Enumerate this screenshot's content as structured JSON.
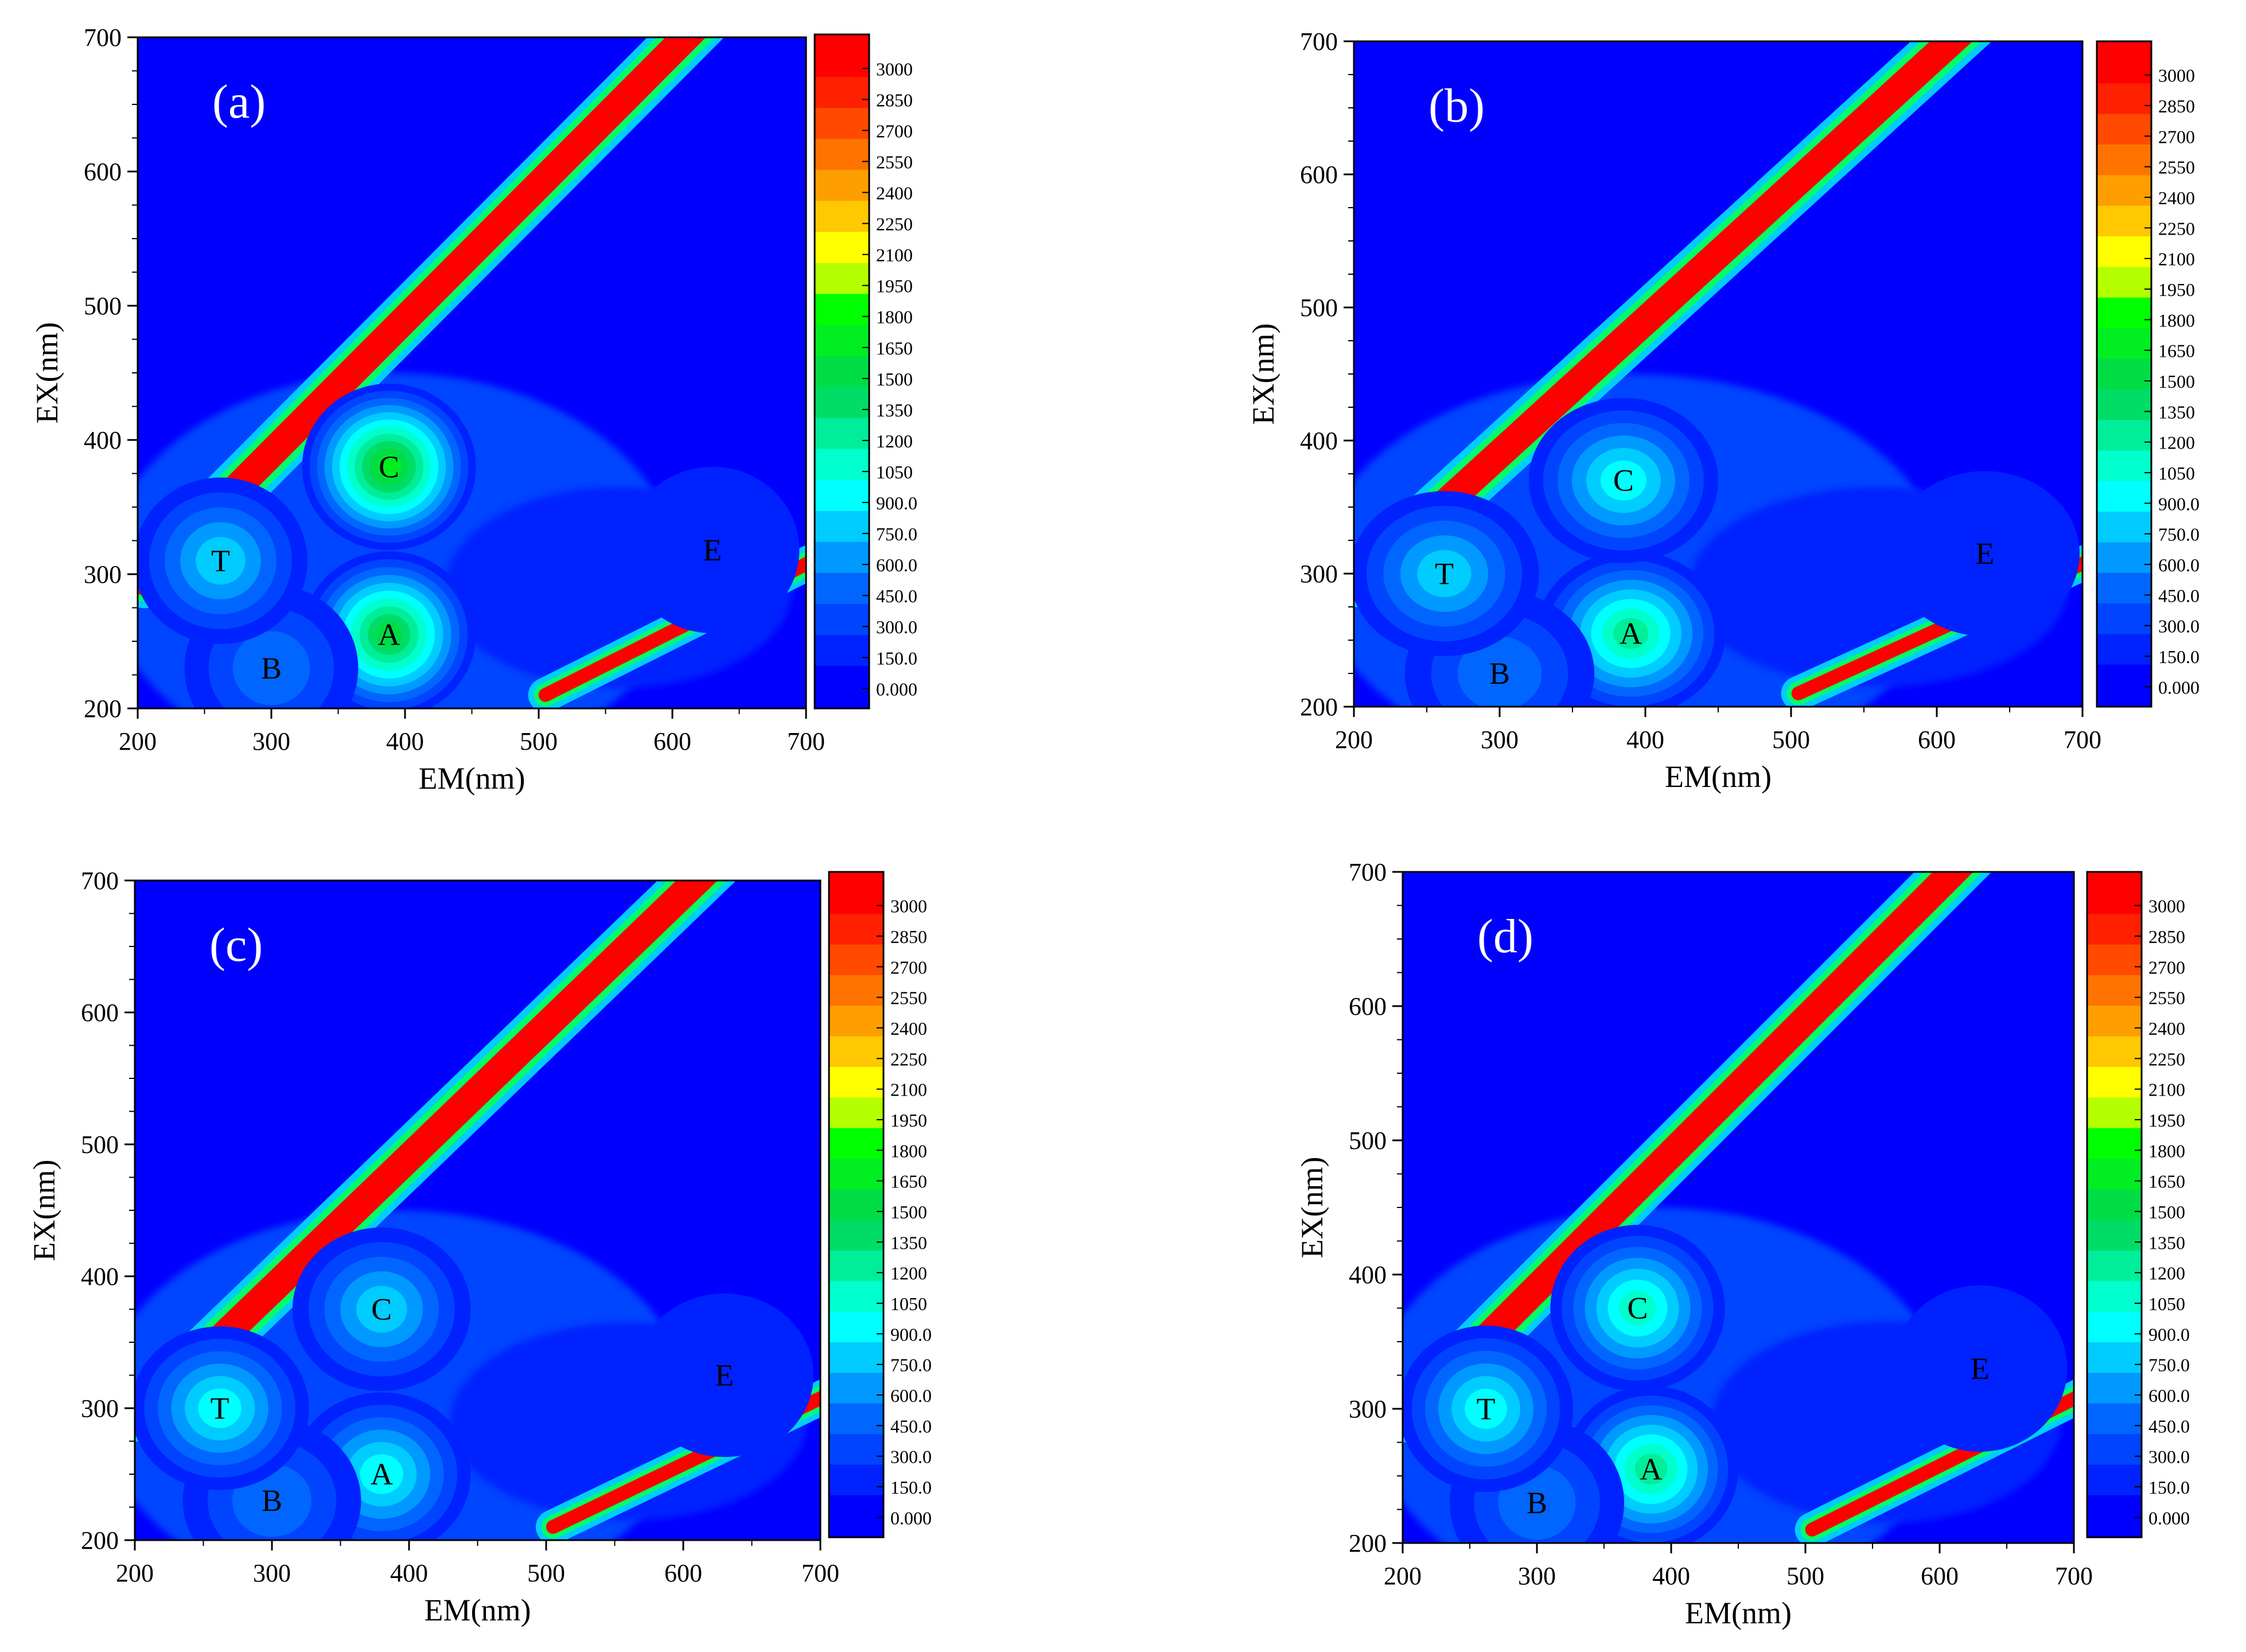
{
  "chart_data": [
    {
      "type": "contour",
      "panel_label": "(a)",
      "xlabel": "EM(nm)",
      "ylabel": "EX(nm)",
      "xlim": [
        200,
        700
      ],
      "ylim": [
        200,
        700
      ],
      "x_ticks": [
        "200",
        "300",
        "400",
        "500",
        "600",
        "700"
      ],
      "y_ticks": [
        "200",
        "300",
        "400",
        "500",
        "600",
        "700"
      ],
      "peaks": [
        {
          "label": "A",
          "em": 388,
          "ex": 255,
          "intensity": 1500
        },
        {
          "label": "B",
          "em": 300,
          "ex": 230,
          "intensity": 550
        },
        {
          "label": "C",
          "em": 388,
          "ex": 380,
          "intensity": 1650
        },
        {
          "label": "T",
          "em": 262,
          "ex": 310,
          "intensity": 850
        },
        {
          "label": "E",
          "em": 630,
          "ex": 318,
          "intensity": 250
        }
      ]
    },
    {
      "type": "contour",
      "panel_label": "(b)",
      "xlabel": "EM(nm)",
      "ylabel": "EX(nm)",
      "xlim": [
        200,
        700
      ],
      "ylim": [
        200,
        700
      ],
      "x_ticks": [
        "200",
        "300",
        "400",
        "500",
        "600",
        "700"
      ],
      "y_ticks": [
        "200",
        "300",
        "400",
        "500",
        "600",
        "700"
      ],
      "peaks": [
        {
          "label": "A",
          "em": 390,
          "ex": 255,
          "intensity": 1300
        },
        {
          "label": "B",
          "em": 300,
          "ex": 225,
          "intensity": 500
        },
        {
          "label": "C",
          "em": 385,
          "ex": 370,
          "intensity": 900
        },
        {
          "label": "T",
          "em": 262,
          "ex": 300,
          "intensity": 850
        },
        {
          "label": "E",
          "em": 633,
          "ex": 315,
          "intensity": 250
        }
      ]
    },
    {
      "type": "contour",
      "panel_label": "(c)",
      "xlabel": "EM(nm)",
      "ylabel": "EX(nm)",
      "xlim": [
        200,
        700
      ],
      "ylim": [
        200,
        700
      ],
      "x_ticks": [
        "200",
        "300",
        "400",
        "500",
        "600",
        "700"
      ],
      "y_ticks": [
        "200",
        "300",
        "400",
        "500",
        "600",
        "700"
      ],
      "peaks": [
        {
          "label": "A",
          "em": 380,
          "ex": 250,
          "intensity": 950
        },
        {
          "label": "B",
          "em": 300,
          "ex": 230,
          "intensity": 500
        },
        {
          "label": "C",
          "em": 380,
          "ex": 375,
          "intensity": 750
        },
        {
          "label": "T",
          "em": 262,
          "ex": 300,
          "intensity": 900
        },
        {
          "label": "E",
          "em": 630,
          "ex": 325,
          "intensity": 250
        }
      ]
    },
    {
      "type": "contour",
      "panel_label": "(d)",
      "xlabel": "EM(nm)",
      "ylabel": "EX(nm)",
      "xlim": [
        200,
        700
      ],
      "ylim": [
        200,
        700
      ],
      "x_ticks": [
        "200",
        "300",
        "400",
        "500",
        "600",
        "700"
      ],
      "y_ticks": [
        "200",
        "300",
        "400",
        "500",
        "600",
        "700"
      ],
      "peaks": [
        {
          "label": "A",
          "em": 385,
          "ex": 255,
          "intensity": 1300
        },
        {
          "label": "B",
          "em": 300,
          "ex": 230,
          "intensity": 550
        },
        {
          "label": "C",
          "em": 375,
          "ex": 375,
          "intensity": 1100
        },
        {
          "label": "T",
          "em": 262,
          "ex": 300,
          "intensity": 900
        },
        {
          "label": "E",
          "em": 630,
          "ex": 330,
          "intensity": 250
        }
      ]
    }
  ],
  "colorbar": {
    "labels": [
      "3000",
      "2850",
      "2700",
      "2550",
      "2400",
      "2250",
      "2100",
      "1950",
      "1800",
      "1650",
      "1500",
      "1350",
      "1200",
      "1050",
      "900.0",
      "750.0",
      "600.0",
      "450.0",
      "300.0",
      "150.0",
      "0.000"
    ],
    "colors": [
      "#ff0000",
      "#ff2000",
      "#ff4a00",
      "#ff7400",
      "#ff9e00",
      "#ffc800",
      "#ffff00",
      "#b4ff00",
      "#00ff00",
      "#00ee22",
      "#00dd44",
      "#00dd66",
      "#00ee99",
      "#00ffcc",
      "#00ffff",
      "#00ccff",
      "#0099ff",
      "#0066ff",
      "#0044ff",
      "#0022ff",
      "#0000ff"
    ]
  }
}
